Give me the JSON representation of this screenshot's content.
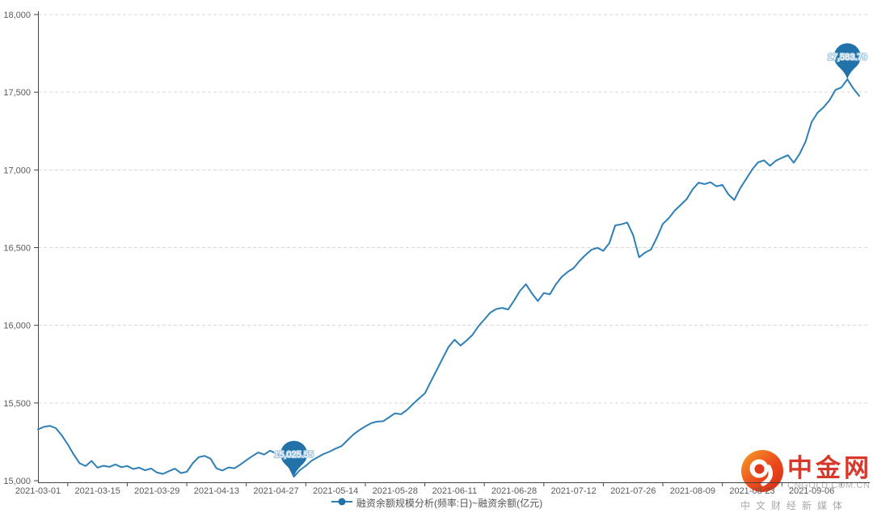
{
  "chart_data": {
    "type": "line",
    "title": "",
    "series_name": "融资余额规模分析(频率:日)~融资余额(亿元)",
    "unit": "亿元",
    "legend_position": "bottom",
    "grid": true,
    "categories": [
      "2021-03-01",
      "2021-03-02",
      "2021-03-03",
      "2021-03-04",
      "2021-03-05",
      "2021-03-08",
      "2021-03-09",
      "2021-03-10",
      "2021-03-11",
      "2021-03-12",
      "2021-03-15",
      "2021-03-16",
      "2021-03-17",
      "2021-03-18",
      "2021-03-19",
      "2021-03-22",
      "2021-03-23",
      "2021-03-24",
      "2021-03-25",
      "2021-03-26",
      "2021-03-29",
      "2021-03-30",
      "2021-03-31",
      "2021-04-01",
      "2021-04-02",
      "2021-04-06",
      "2021-04-07",
      "2021-04-08",
      "2021-04-09",
      "2021-04-12",
      "2021-04-13",
      "2021-04-14",
      "2021-04-15",
      "2021-04-16",
      "2021-04-19",
      "2021-04-20",
      "2021-04-21",
      "2021-04-22",
      "2021-04-23",
      "2021-04-26",
      "2021-04-27",
      "2021-04-28",
      "2021-04-29",
      "2021-04-30",
      "2021-05-06",
      "2021-05-07",
      "2021-05-10",
      "2021-05-11",
      "2021-05-12",
      "2021-05-13",
      "2021-05-14",
      "2021-05-17",
      "2021-05-18",
      "2021-05-19",
      "2021-05-20",
      "2021-05-21",
      "2021-05-24",
      "2021-05-25",
      "2021-05-26",
      "2021-05-27",
      "2021-05-28",
      "2021-05-31",
      "2021-06-01",
      "2021-06-02",
      "2021-06-03",
      "2021-06-04",
      "2021-06-07",
      "2021-06-08",
      "2021-06-09",
      "2021-06-10",
      "2021-06-11",
      "2021-06-15",
      "2021-06-16",
      "2021-06-17",
      "2021-06-18",
      "2021-06-21",
      "2021-06-22",
      "2021-06-23",
      "2021-06-24",
      "2021-06-25",
      "2021-06-28",
      "2021-06-29",
      "2021-06-30",
      "2021-07-01",
      "2021-07-02",
      "2021-07-05",
      "2021-07-06",
      "2021-07-07",
      "2021-07-08",
      "2021-07-09",
      "2021-07-12",
      "2021-07-13",
      "2021-07-14",
      "2021-07-15",
      "2021-07-16",
      "2021-07-19",
      "2021-07-20",
      "2021-07-21",
      "2021-07-22",
      "2021-07-23",
      "2021-07-26",
      "2021-07-27",
      "2021-07-28",
      "2021-07-29",
      "2021-07-30",
      "2021-08-02",
      "2021-08-03",
      "2021-08-04",
      "2021-08-05",
      "2021-08-06",
      "2021-08-09",
      "2021-08-10",
      "2021-08-11",
      "2021-08-12",
      "2021-08-13",
      "2021-08-16",
      "2021-08-17",
      "2021-08-18",
      "2021-08-19",
      "2021-08-20",
      "2021-08-23",
      "2021-08-24",
      "2021-08-25",
      "2021-08-26",
      "2021-08-27",
      "2021-08-30",
      "2021-08-31",
      "2021-09-01",
      "2021-09-02",
      "2021-09-03",
      "2021-09-06",
      "2021-09-07",
      "2021-09-08",
      "2021-09-09",
      "2021-09-10",
      "2021-09-13",
      "2021-09-14",
      "2021-09-15",
      "2021-09-16"
    ],
    "values": [
      15330.21,
      15346.55,
      15352.83,
      15338.12,
      15291.46,
      15233.92,
      15168.38,
      15112.54,
      15094.27,
      15127.63,
      15083.85,
      15096.42,
      15088.96,
      15104.34,
      15086.58,
      15094.72,
      15075.15,
      15083.48,
      15067.23,
      15078.61,
      15052.37,
      15043.85,
      15061.12,
      15077.49,
      15048.73,
      15057.34,
      15111.87,
      15151.26,
      15159.63,
      15141.18,
      15078.92,
      15065.55,
      15085.27,
      15079.94,
      15103.46,
      15131.73,
      15157.28,
      15181.54,
      15167.87,
      15193.35,
      15175.62,
      15157.93,
      15105.28,
      15025.55,
      15067.42,
      15095.78,
      15129.36,
      15150.52,
      15171.84,
      15187.27,
      15206.63,
      15222.45,
      15259.92,
      15297.38,
      15325.76,
      15349.21,
      15370.54,
      15379.87,
      15382.42,
      15407.95,
      15433.68,
      15427.34,
      15455.28,
      15492.64,
      15528.37,
      15561.92,
      15637.45,
      15711.83,
      15787.26,
      15861.54,
      15907.38,
      15869.72,
      15901.46,
      15937.85,
      15993.62,
      16037.28,
      16081.53,
      16104.87,
      16112.34,
      16101.76,
      16159.42,
      16221.68,
      16264.35,
      16204.87,
      16156.42,
      16207.93,
      16199.56,
      16261.74,
      16311.28,
      16343.65,
      16367.92,
      16414.36,
      16452.81,
      16486.57,
      16498.42,
      16479.36,
      16528.43,
      16642.87,
      16649.52,
      16661.95,
      16581.64,
      16437.95,
      16467.52,
      16487.28,
      16564.83,
      16652.46,
      16689.72,
      16738.54,
      16774.92,
      16812.38,
      16875.64,
      16918.25,
      16908.47,
      16920.83,
      16894.57,
      16903.24,
      16843.86,
      16806.42,
      16882.75,
      16941.58,
      17002.36,
      17048.92,
      17061.45,
      17026.83,
      17059.28,
      17077.64,
      17094.56,
      17046.25,
      17104.82,
      17183.47,
      17308.62,
      17368.54,
      17402.78,
      17448.36,
      17514.92,
      17531.27,
      17583.79,
      17524.65,
      17476.38
    ],
    "x_tick_indices": [
      0,
      10,
      20,
      30,
      40,
      50,
      60,
      70,
      80,
      90,
      100,
      110,
      120,
      130
    ],
    "x_tick_labels": [
      "2021-03-01",
      "2021-03-15",
      "2021-03-29",
      "2021-04-13",
      "2021-04-27",
      "2021-05-14",
      "2021-05-28",
      "2021-06-11",
      "2021-06-28",
      "2021-07-12",
      "2021-07-26",
      "2021-08-09",
      "2021-08-23",
      "2021-09-06"
    ],
    "y_axis": {
      "min": 15000,
      "max": 18000,
      "interval": 500,
      "tick_labels": [
        "15,000",
        "15,500",
        "16,000",
        "16,500",
        "17,000",
        "17,500",
        "18,000"
      ]
    },
    "markers": {
      "max": {
        "date": "2021-09-14",
        "value": 17583.79,
        "label": "17,583.79"
      },
      "min": {
        "date": "2021-04-30",
        "value": 15025.55,
        "label": "15,025.55"
      }
    },
    "colors": {
      "line": "#2e7fb5",
      "pin": "#2172a8",
      "pin_label_halo": "#a9cbe2",
      "grid": "#d6d6d6",
      "axis": "#444444",
      "tick_text": "#5a5a5a"
    }
  },
  "legend": {
    "label": "融资余额规模分析(频率:日)~融资余额(亿元)"
  },
  "watermark": {
    "name": "中金网",
    "url": "CNGOLD.COM.CN",
    "slogan": "中文财经新媒体",
    "brand_color": "#d6382a"
  }
}
